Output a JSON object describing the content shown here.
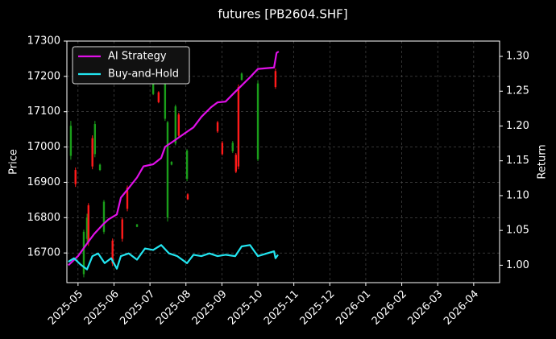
{
  "chart_data": {
    "type": "candlestick",
    "title": "futures [PB2604.SHF]",
    "ylabel": "Price",
    "y2label": "Return",
    "grid": true,
    "legend": "upper left",
    "up_color": "#ff1a1a",
    "down_color": "#1a9e1a",
    "xlim": [
      -0.31,
      11.72
    ],
    "xticks": [
      {
        "value": 0,
        "label": "2025-05"
      },
      {
        "value": 1,
        "label": "2025-06"
      },
      {
        "value": 2,
        "label": "2025-07"
      },
      {
        "value": 3,
        "label": "2025-08"
      },
      {
        "value": 4,
        "label": "2025-09"
      },
      {
        "value": 5,
        "label": "2025-10"
      },
      {
        "value": 6,
        "label": "2025-11"
      },
      {
        "value": 7,
        "label": "2025-12"
      },
      {
        "value": 8,
        "label": "2026-01"
      },
      {
        "value": 9,
        "label": "2026-02"
      },
      {
        "value": 10,
        "label": "2026-03"
      },
      {
        "value": 11,
        "label": "2026-04"
      }
    ],
    "ylim": [
      16616,
      17300
    ],
    "yticks": [
      16700,
      16800,
      16900,
      17000,
      17100,
      17200,
      17300
    ],
    "y2lim": [
      0.975,
      1.322
    ],
    "y2ticks": [
      {
        "value": 1,
        "label": "1.00"
      },
      {
        "value": 1.05,
        "label": "1.05"
      },
      {
        "value": 1.1,
        "label": "1.10"
      },
      {
        "value": 1.15,
        "label": "1.15"
      },
      {
        "value": 1.2,
        "label": "1.20"
      },
      {
        "value": 1.25,
        "label": "1.25"
      },
      {
        "value": 1.3,
        "label": "1.30"
      }
    ],
    "candles": {
      "x": [
        -0.2,
        -0.07,
        0.16,
        0.25,
        0.29,
        0.4,
        0.47,
        0.61,
        0.72,
        0.96,
        1.23,
        1.37,
        1.64,
        2.09,
        2.24,
        2.42,
        2.49,
        2.6,
        2.71,
        2.8,
        3.03,
        3.05,
        3.88,
        4.01,
        4.3,
        4.39,
        4.46,
        4.55,
        5.0,
        5.49
      ],
      "open": [
        17060,
        16895,
        16760,
        16800,
        16730,
        16945,
        17065,
        16950,
        16845,
        16670,
        16740,
        16825,
        16781,
        17185,
        17127,
        17190,
        17070,
        16958,
        17115,
        17032,
        16990,
        16852,
        17044,
        16980,
        17012,
        16930,
        16945,
        17208,
        17180,
        17170
      ],
      "high": [
        17074,
        16942,
        16766,
        16811,
        16841,
        17033,
        17074,
        16953,
        16850,
        16741,
        16800,
        16891,
        16782,
        17188,
        17158,
        17200,
        17074,
        16960,
        17120,
        17097,
        16994,
        16869,
        17074,
        17017,
        17017,
        16983,
        17177,
        17211,
        17188,
        17222
      ],
      "low": [
        16964,
        16887,
        16631,
        16731,
        16720,
        16937,
        16971,
        16932,
        16754,
        16663,
        16732,
        16818,
        16773,
        17147,
        17124,
        17074,
        16789,
        16948,
        17005,
        17028,
        16903,
        16850,
        17040,
        16976,
        16983,
        16926,
        16937,
        17188,
        16960,
        17165
      ],
      "close": [
        16975,
        16935,
        16640,
        16740,
        16835,
        17025,
        16980,
        16935,
        16760,
        16735,
        16795,
        16885,
        16774,
        17150,
        17155,
        17080,
        16800,
        16950,
        17010,
        17092,
        16910,
        16866,
        17070,
        17012,
        16988,
        16978,
        17170,
        17190,
        16965,
        17215
      ]
    },
    "series": [
      {
        "name": "AI Strategy",
        "color": "#e010e8",
        "axis": "y2",
        "x": [
          -0.27,
          0,
          0.29,
          0.45,
          0.7,
          0.85,
          1.08,
          1.19,
          1.41,
          1.64,
          1.82,
          2.09,
          2.31,
          2.42,
          2.65,
          2.98,
          3.21,
          3.43,
          3.7,
          3.88,
          4.1,
          4.33,
          4.78,
          5.0,
          5.45,
          5.52,
          5.58
        ],
        "values": [
          1.0,
          1.013,
          1.034,
          1.045,
          1.059,
          1.066,
          1.073,
          1.097,
          1.111,
          1.126,
          1.142,
          1.145,
          1.154,
          1.17,
          1.178,
          1.19,
          1.198,
          1.213,
          1.227,
          1.234,
          1.235,
          1.247,
          1.27,
          1.282,
          1.284,
          1.305,
          1.307
        ]
      },
      {
        "name": "Buy-and-Hold",
        "color": "#22e5f0",
        "axis": "y2",
        "x": [
          -0.27,
          -0.11,
          0.07,
          0.25,
          0.4,
          0.56,
          0.74,
          0.92,
          1.08,
          1.19,
          1.41,
          1.64,
          1.86,
          2.09,
          2.31,
          2.53,
          2.76,
          3.03,
          3.21,
          3.43,
          3.65,
          3.88,
          4.1,
          4.37,
          4.55,
          4.78,
          5.0,
          5.45,
          5.49,
          5.56
        ],
        "values": [
          1.005,
          1.01,
          1.001,
          0.994,
          1.013,
          1.017,
          1.003,
          1.01,
          0.995,
          1.013,
          1.017,
          1.008,
          1.024,
          1.022,
          1.029,
          1.017,
          1.013,
          1.003,
          1.015,
          1.013,
          1.017,
          1.013,
          1.015,
          1.013,
          1.027,
          1.029,
          1.013,
          1.02,
          1.01,
          1.015
        ]
      }
    ]
  }
}
